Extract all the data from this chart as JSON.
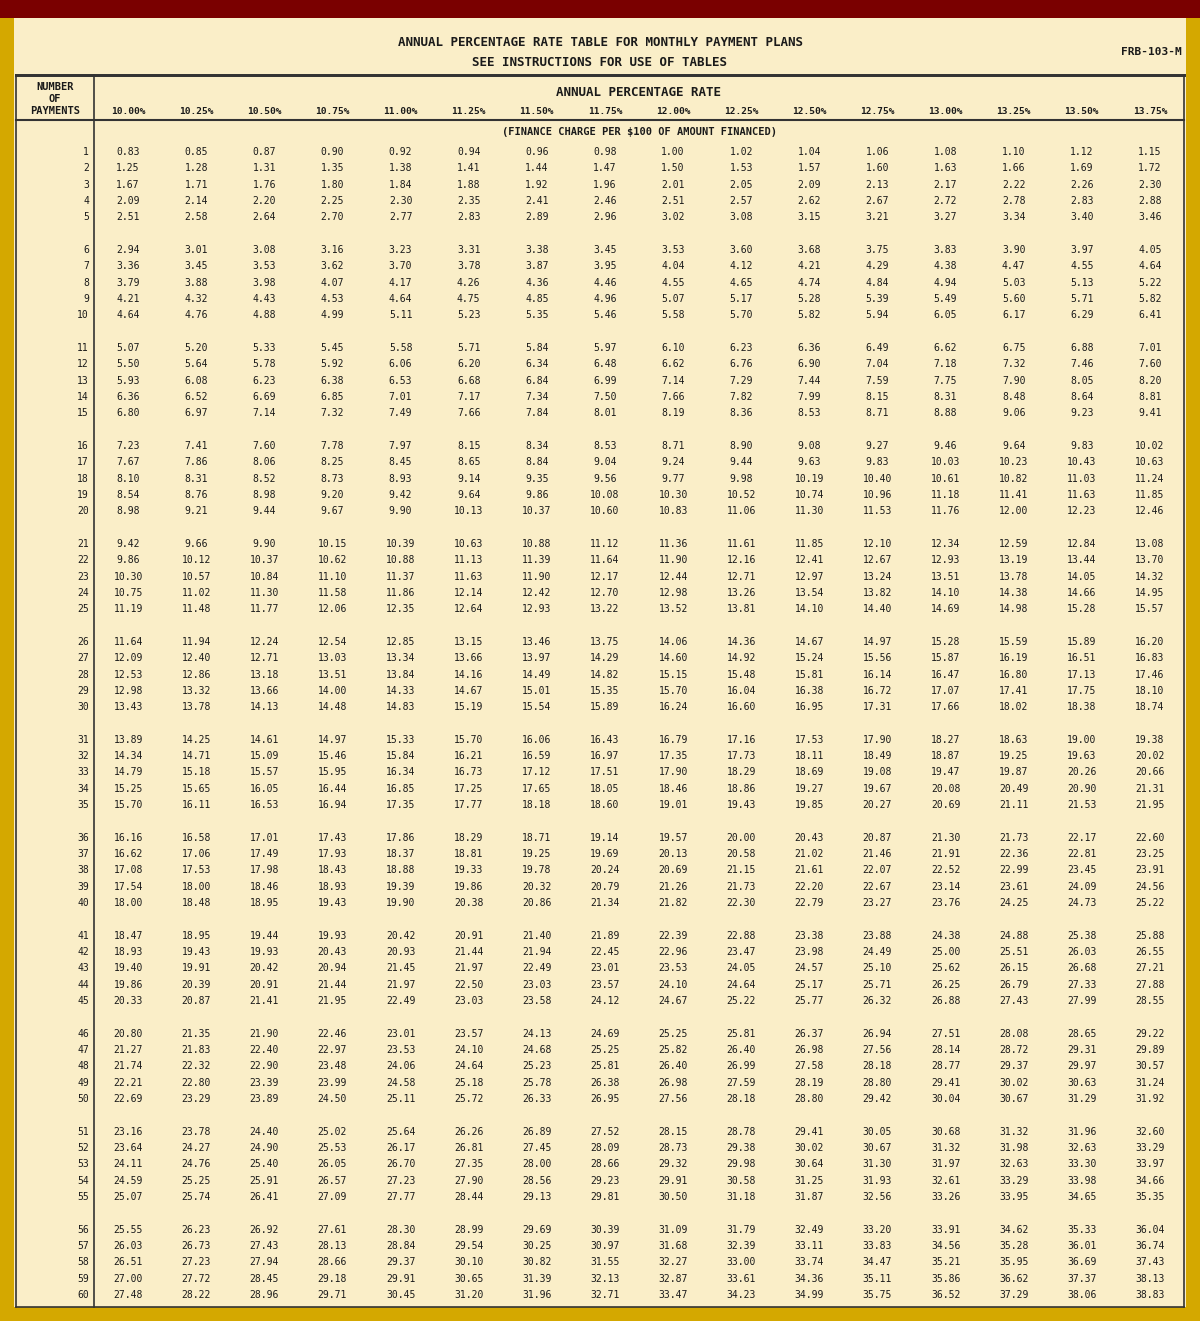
{
  "title1": "ANNUAL PERCENTAGE RATE TABLE FOR MONTHLY PAYMENT PLANS",
  "title2": "SEE INSTRUCTIONS FOR USE OF TABLES",
  "frb_code": "FRB-103-M",
  "col_header": "ANNUAL PERCENTAGE RATE",
  "subheader": "(FINANCE CHARGE PER $100 OF AMOUNT FINANCED)",
  "rates": [
    "10.00%",
    "10.25%",
    "10.50%",
    "10.75%",
    "11.00%",
    "11.25%",
    "11.50%",
    "11.75%",
    "12.00%",
    "12.25%",
    "12.50%",
    "12.75%",
    "13.00%",
    "13.25%",
    "13.50%",
    "13.75%"
  ],
  "payments": [
    1,
    2,
    3,
    4,
    5,
    6,
    7,
    8,
    9,
    10,
    11,
    12,
    13,
    14,
    15,
    16,
    17,
    18,
    19,
    20,
    21,
    22,
    23,
    24,
    25,
    26,
    27,
    28,
    29,
    30,
    31,
    32,
    33,
    34,
    35,
    36,
    37,
    38,
    39,
    40,
    41,
    42,
    43,
    44,
    45,
    46,
    47,
    48,
    49,
    50,
    51,
    52,
    53,
    54,
    55,
    56,
    57,
    58,
    59,
    60
  ],
  "table_data": [
    [
      0.83,
      0.85,
      0.87,
      0.9,
      0.92,
      0.94,
      0.96,
      0.98,
      1.0,
      1.02,
      1.04,
      1.06,
      1.08,
      1.1,
      1.12,
      1.15
    ],
    [
      1.25,
      1.28,
      1.31,
      1.35,
      1.38,
      1.41,
      1.44,
      1.47,
      1.5,
      1.53,
      1.57,
      1.6,
      1.63,
      1.66,
      1.69,
      1.72
    ],
    [
      1.67,
      1.71,
      1.76,
      1.8,
      1.84,
      1.88,
      1.92,
      1.96,
      2.01,
      2.05,
      2.09,
      2.13,
      2.17,
      2.22,
      2.26,
      2.3
    ],
    [
      2.09,
      2.14,
      2.2,
      2.25,
      2.3,
      2.35,
      2.41,
      2.46,
      2.51,
      2.57,
      2.62,
      2.67,
      2.72,
      2.78,
      2.83,
      2.88
    ],
    [
      2.51,
      2.58,
      2.64,
      2.7,
      2.77,
      2.83,
      2.89,
      2.96,
      3.02,
      3.08,
      3.15,
      3.21,
      3.27,
      3.34,
      3.4,
      3.46
    ],
    [
      2.94,
      3.01,
      3.08,
      3.16,
      3.23,
      3.31,
      3.38,
      3.45,
      3.53,
      3.6,
      3.68,
      3.75,
      3.83,
      3.9,
      3.97,
      4.05
    ],
    [
      3.36,
      3.45,
      3.53,
      3.62,
      3.7,
      3.78,
      3.87,
      3.95,
      4.04,
      4.12,
      4.21,
      4.29,
      4.38,
      4.47,
      4.55,
      4.64
    ],
    [
      3.79,
      3.88,
      3.98,
      4.07,
      4.17,
      4.26,
      4.36,
      4.46,
      4.55,
      4.65,
      4.74,
      4.84,
      4.94,
      5.03,
      5.13,
      5.22
    ],
    [
      4.21,
      4.32,
      4.43,
      4.53,
      4.64,
      4.75,
      4.85,
      4.96,
      5.07,
      5.17,
      5.28,
      5.39,
      5.49,
      5.6,
      5.71,
      5.82
    ],
    [
      4.64,
      4.76,
      4.88,
      4.99,
      5.11,
      5.23,
      5.35,
      5.46,
      5.58,
      5.7,
      5.82,
      5.94,
      6.05,
      6.17,
      6.29,
      6.41
    ],
    [
      5.07,
      5.2,
      5.33,
      5.45,
      5.58,
      5.71,
      5.84,
      5.97,
      6.1,
      6.23,
      6.36,
      6.49,
      6.62,
      6.75,
      6.88,
      7.01
    ],
    [
      5.5,
      5.64,
      5.78,
      5.92,
      6.06,
      6.2,
      6.34,
      6.48,
      6.62,
      6.76,
      6.9,
      7.04,
      7.18,
      7.32,
      7.46,
      7.6
    ],
    [
      5.93,
      6.08,
      6.23,
      6.38,
      6.53,
      6.68,
      6.84,
      6.99,
      7.14,
      7.29,
      7.44,
      7.59,
      7.75,
      7.9,
      8.05,
      8.2
    ],
    [
      6.36,
      6.52,
      6.69,
      6.85,
      7.01,
      7.17,
      7.34,
      7.5,
      7.66,
      7.82,
      7.99,
      8.15,
      8.31,
      8.48,
      8.64,
      8.81
    ],
    [
      6.8,
      6.97,
      7.14,
      7.32,
      7.49,
      7.66,
      7.84,
      8.01,
      8.19,
      8.36,
      8.53,
      8.71,
      8.88,
      9.06,
      9.23,
      9.41
    ],
    [
      7.23,
      7.41,
      7.6,
      7.78,
      7.97,
      8.15,
      8.34,
      8.53,
      8.71,
      8.9,
      9.08,
      9.27,
      9.46,
      9.64,
      9.83,
      10.02
    ],
    [
      7.67,
      7.86,
      8.06,
      8.25,
      8.45,
      8.65,
      8.84,
      9.04,
      9.24,
      9.44,
      9.63,
      9.83,
      10.03,
      10.23,
      10.43,
      10.63
    ],
    [
      8.1,
      8.31,
      8.52,
      8.73,
      8.93,
      9.14,
      9.35,
      9.56,
      9.77,
      9.98,
      10.19,
      10.4,
      10.61,
      10.82,
      11.03,
      11.24
    ],
    [
      8.54,
      8.76,
      8.98,
      9.2,
      9.42,
      9.64,
      9.86,
      10.08,
      10.3,
      10.52,
      10.74,
      10.96,
      11.18,
      11.41,
      11.63,
      11.85
    ],
    [
      8.98,
      9.21,
      9.44,
      9.67,
      9.9,
      10.13,
      10.37,
      10.6,
      10.83,
      11.06,
      11.3,
      11.53,
      11.76,
      12.0,
      12.23,
      12.46
    ],
    [
      9.42,
      9.66,
      9.9,
      10.15,
      10.39,
      10.63,
      10.88,
      11.12,
      11.36,
      11.61,
      11.85,
      12.1,
      12.34,
      12.59,
      12.84,
      13.08
    ],
    [
      9.86,
      10.12,
      10.37,
      10.62,
      10.88,
      11.13,
      11.39,
      11.64,
      11.9,
      12.16,
      12.41,
      12.67,
      12.93,
      13.19,
      13.44,
      13.7
    ],
    [
      10.3,
      10.57,
      10.84,
      11.1,
      11.37,
      11.63,
      11.9,
      12.17,
      12.44,
      12.71,
      12.97,
      13.24,
      13.51,
      13.78,
      14.05,
      14.32
    ],
    [
      10.75,
      11.02,
      11.3,
      11.58,
      11.86,
      12.14,
      12.42,
      12.7,
      12.98,
      13.26,
      13.54,
      13.82,
      14.1,
      14.38,
      14.66,
      14.95
    ],
    [
      11.19,
      11.48,
      11.77,
      12.06,
      12.35,
      12.64,
      12.93,
      13.22,
      13.52,
      13.81,
      14.1,
      14.4,
      14.69,
      14.98,
      15.28,
      15.57
    ],
    [
      11.64,
      11.94,
      12.24,
      12.54,
      12.85,
      13.15,
      13.46,
      13.75,
      14.06,
      14.36,
      14.67,
      14.97,
      15.28,
      15.59,
      15.89,
      16.2
    ],
    [
      12.09,
      12.4,
      12.71,
      13.03,
      13.34,
      13.66,
      13.97,
      14.29,
      14.6,
      14.92,
      15.24,
      15.56,
      15.87,
      16.19,
      16.51,
      16.83
    ],
    [
      12.53,
      12.86,
      13.18,
      13.51,
      13.84,
      14.16,
      14.49,
      14.82,
      15.15,
      15.48,
      15.81,
      16.14,
      16.47,
      16.8,
      17.13,
      17.46
    ],
    [
      12.98,
      13.32,
      13.66,
      14.0,
      14.33,
      14.67,
      15.01,
      15.35,
      15.7,
      16.04,
      16.38,
      16.72,
      17.07,
      17.41,
      17.75,
      18.1
    ],
    [
      13.43,
      13.78,
      14.13,
      14.48,
      14.83,
      15.19,
      15.54,
      15.89,
      16.24,
      16.6,
      16.95,
      17.31,
      17.66,
      18.02,
      18.38,
      18.74
    ],
    [
      13.89,
      14.25,
      14.61,
      14.97,
      15.33,
      15.7,
      16.06,
      16.43,
      16.79,
      17.16,
      17.53,
      17.9,
      18.27,
      18.63,
      19.0,
      19.38
    ],
    [
      14.34,
      14.71,
      15.09,
      15.46,
      15.84,
      16.21,
      16.59,
      16.97,
      17.35,
      17.73,
      18.11,
      18.49,
      18.87,
      19.25,
      19.63,
      20.02
    ],
    [
      14.79,
      15.18,
      15.57,
      15.95,
      16.34,
      16.73,
      17.12,
      17.51,
      17.9,
      18.29,
      18.69,
      19.08,
      19.47,
      19.87,
      20.26,
      20.66
    ],
    [
      15.25,
      15.65,
      16.05,
      16.44,
      16.85,
      17.25,
      17.65,
      18.05,
      18.46,
      18.86,
      19.27,
      19.67,
      20.08,
      20.49,
      20.9,
      21.31
    ],
    [
      15.7,
      16.11,
      16.53,
      16.94,
      17.35,
      17.77,
      18.18,
      18.6,
      19.01,
      19.43,
      19.85,
      20.27,
      20.69,
      21.11,
      21.53,
      21.95
    ],
    [
      16.16,
      16.58,
      17.01,
      17.43,
      17.86,
      18.29,
      18.71,
      19.14,
      19.57,
      20.0,
      20.43,
      20.87,
      21.3,
      21.73,
      22.17,
      22.6
    ],
    [
      16.62,
      17.06,
      17.49,
      17.93,
      18.37,
      18.81,
      19.25,
      19.69,
      20.13,
      20.58,
      21.02,
      21.46,
      21.91,
      22.36,
      22.81,
      23.25
    ],
    [
      17.08,
      17.53,
      17.98,
      18.43,
      18.88,
      19.33,
      19.78,
      20.24,
      20.69,
      21.15,
      21.61,
      22.07,
      22.52,
      22.99,
      23.45,
      23.91
    ],
    [
      17.54,
      18.0,
      18.46,
      18.93,
      19.39,
      19.86,
      20.32,
      20.79,
      21.26,
      21.73,
      22.2,
      22.67,
      23.14,
      23.61,
      24.09,
      24.56
    ],
    [
      18.0,
      18.48,
      18.95,
      19.43,
      19.9,
      20.38,
      20.86,
      21.34,
      21.82,
      22.3,
      22.79,
      23.27,
      23.76,
      24.25,
      24.73,
      25.22
    ],
    [
      18.47,
      18.95,
      19.44,
      19.93,
      20.42,
      20.91,
      21.4,
      21.89,
      22.39,
      22.88,
      23.38,
      23.88,
      24.38,
      24.88,
      25.38,
      25.88
    ],
    [
      18.93,
      19.43,
      19.93,
      20.43,
      20.93,
      21.44,
      21.94,
      22.45,
      22.96,
      23.47,
      23.98,
      24.49,
      25.0,
      25.51,
      26.03,
      26.55
    ],
    [
      19.4,
      19.91,
      20.42,
      20.94,
      21.45,
      21.97,
      22.49,
      23.01,
      23.53,
      24.05,
      24.57,
      25.1,
      25.62,
      26.15,
      26.68,
      27.21
    ],
    [
      19.86,
      20.39,
      20.91,
      21.44,
      21.97,
      22.5,
      23.03,
      23.57,
      24.1,
      24.64,
      25.17,
      25.71,
      26.25,
      26.79,
      27.33,
      27.88
    ],
    [
      20.33,
      20.87,
      21.41,
      21.95,
      22.49,
      23.03,
      23.58,
      24.12,
      24.67,
      25.22,
      25.77,
      26.32,
      26.88,
      27.43,
      27.99,
      28.55
    ],
    [
      20.8,
      21.35,
      21.9,
      22.46,
      23.01,
      23.57,
      24.13,
      24.69,
      25.25,
      25.81,
      26.37,
      26.94,
      27.51,
      28.08,
      28.65,
      29.22
    ],
    [
      21.27,
      21.83,
      22.4,
      22.97,
      23.53,
      24.1,
      24.68,
      25.25,
      25.82,
      26.4,
      26.98,
      27.56,
      28.14,
      28.72,
      29.31,
      29.89
    ],
    [
      21.74,
      22.32,
      22.9,
      23.48,
      24.06,
      24.64,
      25.23,
      25.81,
      26.4,
      26.99,
      27.58,
      28.18,
      28.77,
      29.37,
      29.97,
      30.57
    ],
    [
      22.21,
      22.8,
      23.39,
      23.99,
      24.58,
      25.18,
      25.78,
      26.38,
      26.98,
      27.59,
      28.19,
      28.8,
      29.41,
      30.02,
      30.63,
      31.24
    ],
    [
      22.69,
      23.29,
      23.89,
      24.5,
      25.11,
      25.72,
      26.33,
      26.95,
      27.56,
      28.18,
      28.8,
      29.42,
      30.04,
      30.67,
      31.29,
      31.92
    ],
    [
      23.16,
      23.78,
      24.4,
      25.02,
      25.64,
      26.26,
      26.89,
      27.52,
      28.15,
      28.78,
      29.41,
      30.05,
      30.68,
      31.32,
      31.96,
      32.6
    ],
    [
      23.64,
      24.27,
      24.9,
      25.53,
      26.17,
      26.81,
      27.45,
      28.09,
      28.73,
      29.38,
      30.02,
      30.67,
      31.32,
      31.98,
      32.63,
      33.29
    ],
    [
      24.11,
      24.76,
      25.4,
      26.05,
      26.7,
      27.35,
      28.0,
      28.66,
      29.32,
      29.98,
      30.64,
      31.3,
      31.97,
      32.63,
      33.3,
      33.97
    ],
    [
      24.59,
      25.25,
      25.91,
      26.57,
      27.23,
      27.9,
      28.56,
      29.23,
      29.91,
      30.58,
      31.25,
      31.93,
      32.61,
      33.29,
      33.98,
      34.66
    ],
    [
      25.07,
      25.74,
      26.41,
      27.09,
      27.77,
      28.44,
      29.13,
      29.81,
      30.5,
      31.18,
      31.87,
      32.56,
      33.26,
      33.95,
      34.65,
      35.35
    ],
    [
      25.55,
      26.23,
      26.92,
      27.61,
      28.3,
      28.99,
      29.69,
      30.39,
      31.09,
      31.79,
      32.49,
      33.2,
      33.91,
      34.62,
      35.33,
      36.04
    ],
    [
      26.03,
      26.73,
      27.43,
      28.13,
      28.84,
      29.54,
      30.25,
      30.97,
      31.68,
      32.39,
      33.11,
      33.83,
      34.56,
      35.28,
      36.01,
      36.74
    ],
    [
      26.51,
      27.23,
      27.94,
      28.66,
      29.37,
      30.1,
      30.82,
      31.55,
      32.27,
      33.0,
      33.74,
      34.47,
      35.21,
      35.95,
      36.69,
      37.43
    ],
    [
      27.0,
      27.72,
      28.45,
      29.18,
      29.91,
      30.65,
      31.39,
      32.13,
      32.87,
      33.61,
      34.36,
      35.11,
      35.86,
      36.62,
      37.37,
      38.13
    ],
    [
      27.48,
      28.22,
      28.96,
      29.71,
      30.45,
      31.2,
      31.96,
      32.71,
      33.47,
      34.23,
      34.99,
      35.75,
      36.52,
      37.29,
      38.06,
      38.83
    ]
  ],
  "bg_color": "#faeec8",
  "text_color": "#1a1a1a",
  "top_bar_color": "#7a0000",
  "gold_color": "#d4a800",
  "line_color": "#333333",
  "font_size_data": 7.0,
  "font_size_header": 7.5,
  "font_size_title": 9.0,
  "font_size_rates": 6.8
}
